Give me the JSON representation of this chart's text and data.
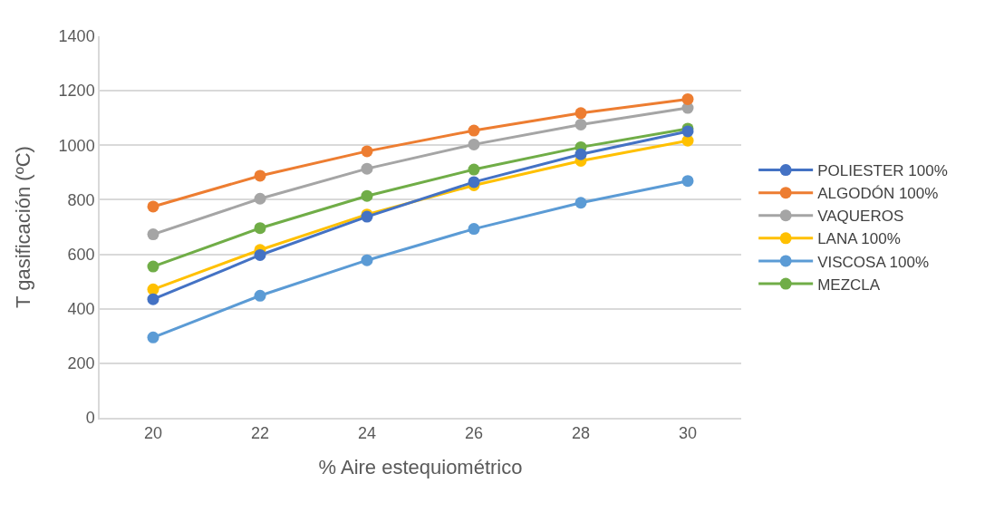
{
  "chart_data": {
    "type": "line",
    "xlabel": "% Aire estequiométrico",
    "ylabel": "T gasificación (ºC)",
    "x": [
      20,
      22,
      24,
      26,
      28,
      30
    ],
    "xlim": [
      19,
      31
    ],
    "xticks": [
      20,
      22,
      24,
      26,
      28,
      30
    ],
    "ylim": [
      0,
      1400
    ],
    "yticks": [
      0,
      200,
      400,
      600,
      800,
      1000,
      1200,
      1400
    ],
    "grid": "y",
    "legend": "right",
    "marker": "circle",
    "line_style": "solid",
    "series": [
      {
        "name": "POLIESTER 100%",
        "color": "#4472c4",
        "values": [
          435,
          597,
          738,
          865,
          967,
          1051
        ]
      },
      {
        "name": "ALGODÓN 100%",
        "color": "#ed7d31",
        "values": [
          775,
          888,
          978,
          1054,
          1118,
          1169
        ]
      },
      {
        "name": "VAQUEROS",
        "color": "#a5a5a5",
        "values": [
          673,
          804,
          914,
          1003,
          1076,
          1137
        ]
      },
      {
        "name": "LANA 100%",
        "color": "#ffc000",
        "values": [
          471,
          616,
          746,
          853,
          943,
          1017
        ]
      },
      {
        "name": "VISCOSA 100%",
        "color": "#5b9bd5",
        "values": [
          295,
          448,
          578,
          693,
          789,
          869
        ]
      },
      {
        "name": "MEZCLA",
        "color": "#70ad47",
        "values": [
          555,
          696,
          814,
          911,
          993,
          1061
        ]
      }
    ]
  }
}
